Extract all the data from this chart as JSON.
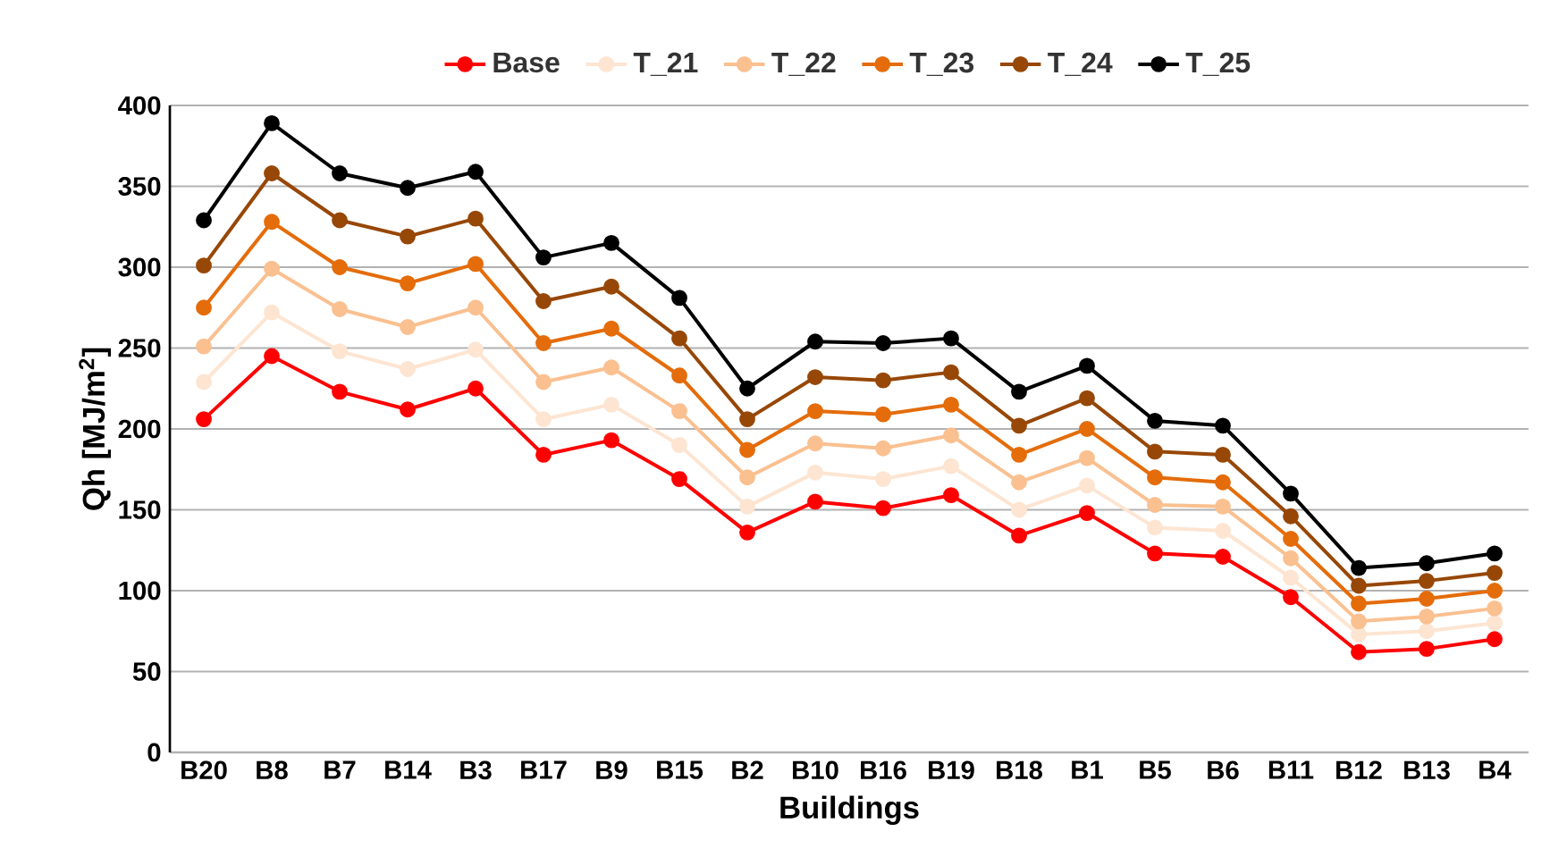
{
  "chart_data": {
    "type": "line",
    "xlabel": "Buildings",
    "ylabel": "Qh [MJ/m$^{2}$]",
    "categories": [
      "B20",
      "B8",
      "B7",
      "B14",
      "B3",
      "B17",
      "B9",
      "B15",
      "B2",
      "B10",
      "B16",
      "B19",
      "B18",
      "B1",
      "B5",
      "B6",
      "B11",
      "B12",
      "B13",
      "B4"
    ],
    "series": [
      {
        "name": "Base",
        "color": "#ff0000",
        "values": [
          206,
          245,
          223,
          212,
          225,
          184,
          193,
          169,
          136,
          155,
          151,
          159,
          134,
          148,
          123,
          121,
          96,
          62,
          64,
          70
        ]
      },
      {
        "name": "T_21",
        "color": "#fde5d2",
        "values": [
          229,
          272,
          248,
          237,
          249,
          206,
          215,
          190,
          152,
          173,
          169,
          177,
          150,
          165,
          139,
          137,
          108,
          73,
          75,
          80
        ]
      },
      {
        "name": "T_22",
        "color": "#fac090",
        "values": [
          251,
          299,
          274,
          263,
          275,
          229,
          238,
          211,
          170,
          191,
          188,
          196,
          167,
          182,
          153,
          152,
          120,
          81,
          84,
          89
        ]
      },
      {
        "name": "T_23",
        "color": "#e46c0a",
        "values": [
          275,
          328,
          300,
          290,
          302,
          253,
          262,
          233,
          187,
          211,
          209,
          215,
          184,
          200,
          170,
          167,
          132,
          92,
          95,
          100
        ]
      },
      {
        "name": "T_24",
        "color": "#974706",
        "values": [
          301,
          358,
          329,
          319,
          330,
          279,
          288,
          256,
          206,
          232,
          230,
          235,
          202,
          219,
          186,
          184,
          146,
          103,
          106,
          111
        ]
      },
      {
        "name": "T_25",
        "color": "#000000",
        "values": [
          329,
          389,
          358,
          349,
          359,
          306,
          315,
          281,
          225,
          254,
          253,
          256,
          223,
          239,
          205,
          202,
          160,
          114,
          117,
          123
        ]
      }
    ],
    "ylim": [
      0,
      400
    ],
    "yticks": [
      0,
      50,
      100,
      150,
      200,
      250,
      300,
      350,
      400
    ],
    "grid": "y",
    "legend": "top",
    "marker": "circle"
  }
}
